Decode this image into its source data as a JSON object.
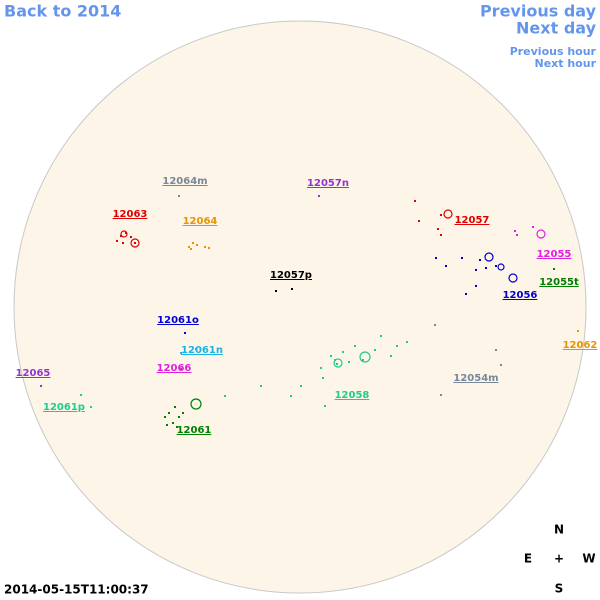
{
  "navigation": {
    "back": "Back to 2014",
    "previous_day": "Previous day",
    "next_day": "Next day",
    "previous_hour": "Previous hour",
    "next_hour": "Next hour"
  },
  "regions": [
    {
      "label": "12064m",
      "color": "#778899"
    },
    {
      "label": "12057n",
      "color": "#9932cc"
    },
    {
      "label": "12063",
      "color": "#e00000"
    },
    {
      "label": "12064",
      "color": "#e69500"
    },
    {
      "label": "12057",
      "color": "#e00000"
    },
    {
      "label": "12055",
      "color": "#e020e0"
    },
    {
      "label": "12057p",
      "color": "#000000"
    },
    {
      "label": "12056",
      "color": "#0000d0"
    },
    {
      "label": "12055t",
      "color": "#008000"
    },
    {
      "label": "12061o",
      "color": "#0000d0"
    },
    {
      "label": "12061n",
      "color": "#1ab3e6"
    },
    {
      "label": "12062",
      "color": "#e69500"
    },
    {
      "label": "12066",
      "color": "#e020e0"
    },
    {
      "label": "12065",
      "color": "#9932cc"
    },
    {
      "label": "12054m",
      "color": "#778899"
    },
    {
      "label": "12058",
      "color": "#1fcc8c"
    },
    {
      "label": "12061p",
      "color": "#1fcc8c"
    },
    {
      "label": "12061",
      "color": "#008000"
    }
  ],
  "compass": {
    "north": "N",
    "east": "E",
    "center": "+",
    "west": "W",
    "south": "S"
  },
  "timestamp": "2014-05-15T11:00:37"
}
